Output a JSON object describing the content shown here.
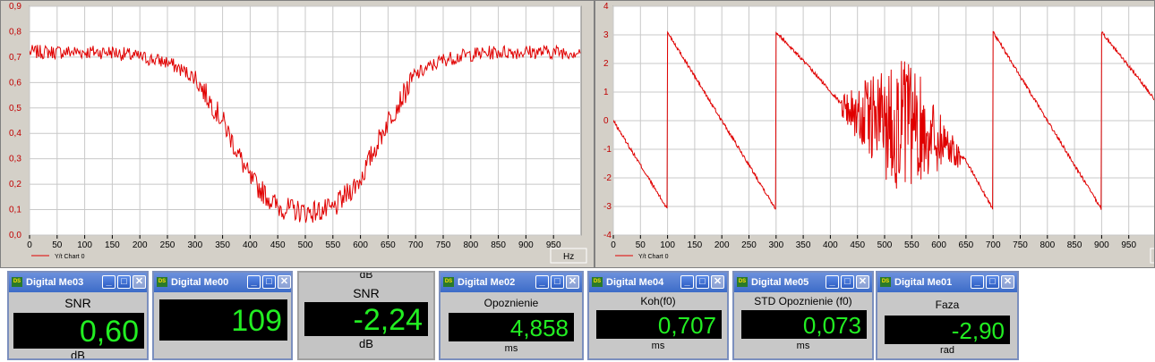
{
  "colors": {
    "trace": "#e00000",
    "plot_bg": "#ffffff",
    "grid": "#c8c8c8",
    "panel": "#d4d0c8",
    "display_bg": "#000000",
    "display_fg": "#22ee22",
    "titlebar": "#3d6cc8"
  },
  "charts": {
    "left": {
      "legend": "Y/t Chart 0",
      "unit": "Hz",
      "y_ticks": [
        "0,9",
        "0,8",
        "0,7",
        "0,6",
        "0,5",
        "0,4",
        "0,3",
        "0,2",
        "0,1",
        "0,0"
      ],
      "x_ticks": [
        "0",
        "50",
        "100",
        "150",
        "200",
        "250",
        "300",
        "350",
        "400",
        "450",
        "500",
        "550",
        "600",
        "650",
        "700",
        "750",
        "800",
        "850",
        "900",
        "950"
      ]
    },
    "right": {
      "legend": "Y/t Chart 0",
      "unit": "Hz",
      "y_ticks": [
        "4",
        "3",
        "2",
        "1",
        "0",
        "-1",
        "-2",
        "-3",
        "-4"
      ],
      "x_ticks": [
        "0",
        "50",
        "100",
        "150",
        "200",
        "250",
        "300",
        "350",
        "400",
        "450",
        "500",
        "550",
        "600",
        "650",
        "700",
        "750",
        "800",
        "850",
        "900",
        "950"
      ]
    }
  },
  "chart_data": [
    {
      "type": "line",
      "title": "",
      "xlabel": "Hz",
      "ylabel": "",
      "xlim": [
        0,
        1000
      ],
      "ylim": [
        0,
        0.9
      ],
      "series": [
        {
          "name": "Y/t Chart 0",
          "x": [
            0,
            50,
            100,
            150,
            200,
            250,
            300,
            350,
            400,
            450,
            500,
            550,
            600,
            650,
            700,
            750,
            800,
            850,
            900,
            950,
            1000
          ],
          "y": [
            0.72,
            0.72,
            0.72,
            0.72,
            0.7,
            0.68,
            0.62,
            0.45,
            0.22,
            0.11,
            0.09,
            0.1,
            0.22,
            0.45,
            0.63,
            0.69,
            0.71,
            0.72,
            0.72,
            0.72,
            0.72
          ]
        }
      ]
    },
    {
      "type": "line",
      "title": "",
      "xlabel": "Hz",
      "ylabel": "",
      "xlim": [
        0,
        1000
      ],
      "ylim": [
        -4,
        4
      ],
      "series": [
        {
          "name": "Y/t Chart 0",
          "x": [
            0,
            99.9,
            100,
            299.9,
            300,
            350,
            420,
            450,
            500,
            550,
            600,
            650,
            699.9,
            700,
            899.9,
            900,
            1000
          ],
          "y": [
            0,
            -3.1,
            3.1,
            -3.1,
            3.1,
            2.1,
            0.6,
            0.2,
            0,
            -0.2,
            -0.6,
            -1.4,
            -3.1,
            3.1,
            -3.1,
            3.1,
            0.7
          ]
        }
      ]
    }
  ],
  "meters": [
    {
      "window_title": "Digital Me03",
      "label": "SNR",
      "value": "0,60",
      "unit": "dB"
    },
    {
      "window_title": "Digital Me00",
      "label": "",
      "value": "109",
      "unit": ""
    },
    {
      "window_title": "",
      "top_label": "dB",
      "label": "SNR",
      "value": "-2,24",
      "unit": "dB"
    },
    {
      "window_title": "Digital Me02",
      "label": "Opoznienie",
      "value": "4,858",
      "unit": "ms"
    },
    {
      "window_title": "Digital Me04",
      "label": "Koh(f0)",
      "value": "0,707",
      "unit": "ms"
    },
    {
      "window_title": "Digital Me05",
      "label": "STD Opoznienie (f0)",
      "value": "0,073",
      "unit": "ms"
    },
    {
      "window_title": "Digital Me01",
      "label": "Faza",
      "value": "-2,90",
      "unit": "rad"
    }
  ],
  "icons": {
    "window": "ds-app-icon",
    "minimize": "minimize-icon",
    "maximize": "maximize-icon",
    "close": "close-icon"
  }
}
